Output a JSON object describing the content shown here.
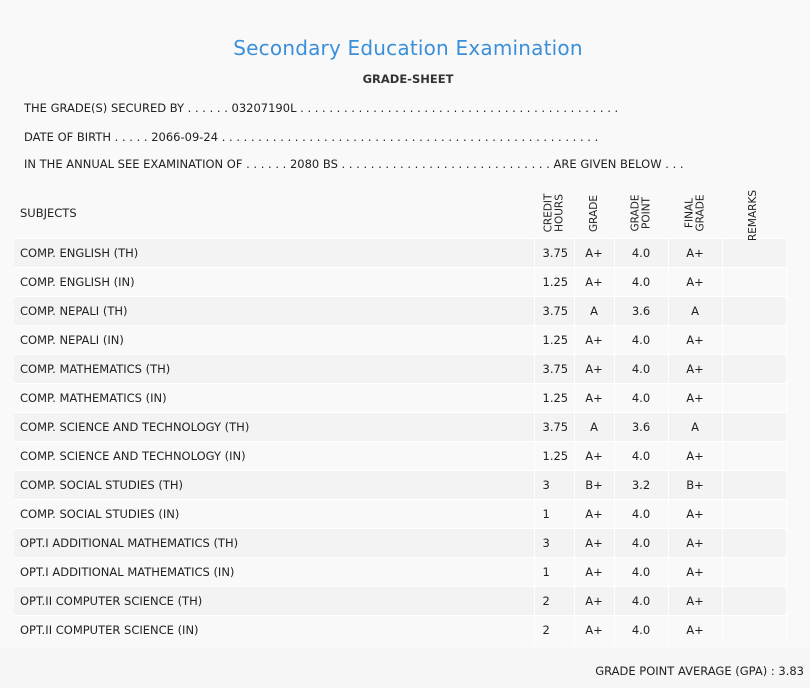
{
  "header": {
    "title": "Secondary Education Examination",
    "subtitle": "GRADE-SHEET"
  },
  "info": {
    "secured_by": "THE GRADE(S) SECURED BY . . . . . . 03207190L . . . . . . . . . . . . . . . . . . . . . . . . . . . . . . . . . . . . . . . . . . . .",
    "dob": "DATE OF BIRTH . . . . . 2066-09-24 . . . . . . . . . . . . . . . . . . . . . . . . . . . . . . . . . . . . . . . . . . . . . . . . . . . .",
    "exam": "IN THE ANNUAL SEE EXAMINATION OF . . . . . . 2080 BS . . . . . . . . . . . . . . . . . . . . . . . . . . . . . ARE GIVEN BELOW . . ."
  },
  "columns": {
    "subjects": "SUBJECTS",
    "credit_hours": [
      "CREDIT",
      "HOURS"
    ],
    "grade": "GRADE",
    "grade_point": [
      "GRADE",
      "POINT"
    ],
    "final_grade": [
      "FINAL",
      "GRADE"
    ],
    "remarks": "REMARKS"
  },
  "rows": [
    {
      "subject": "COMP. ENGLISH (TH)",
      "credit": "3.75",
      "grade": "A+",
      "point": "4.0",
      "final": "A+",
      "remarks": ""
    },
    {
      "subject": "COMP. ENGLISH (IN)",
      "credit": "1.25",
      "grade": "A+",
      "point": "4.0",
      "final": "A+",
      "remarks": ""
    },
    {
      "subject": "COMP. NEPALI (TH)",
      "credit": "3.75",
      "grade": "A",
      "point": "3.6",
      "final": "A",
      "remarks": ""
    },
    {
      "subject": "COMP. NEPALI (IN)",
      "credit": "1.25",
      "grade": "A+",
      "point": "4.0",
      "final": "A+",
      "remarks": ""
    },
    {
      "subject": "COMP. MATHEMATICS (TH)",
      "credit": "3.75",
      "grade": "A+",
      "point": "4.0",
      "final": "A+",
      "remarks": ""
    },
    {
      "subject": "COMP. MATHEMATICS (IN)",
      "credit": "1.25",
      "grade": "A+",
      "point": "4.0",
      "final": "A+",
      "remarks": ""
    },
    {
      "subject": "COMP. SCIENCE AND TECHNOLOGY (TH)",
      "credit": "3.75",
      "grade": "A",
      "point": "3.6",
      "final": "A",
      "remarks": ""
    },
    {
      "subject": "COMP. SCIENCE AND TECHNOLOGY (IN)",
      "credit": "1.25",
      "grade": "A+",
      "point": "4.0",
      "final": "A+",
      "remarks": ""
    },
    {
      "subject": "COMP. SOCIAL STUDIES (TH)",
      "credit": "3",
      "grade": "B+",
      "point": "3.2",
      "final": "B+",
      "remarks": ""
    },
    {
      "subject": "COMP. SOCIAL STUDIES (IN)",
      "credit": "1",
      "grade": "A+",
      "point": "4.0",
      "final": "A+",
      "remarks": ""
    },
    {
      "subject": "OPT.I ADDITIONAL MATHEMATICS (TH)",
      "credit": "3",
      "grade": "A+",
      "point": "4.0",
      "final": "A+",
      "remarks": ""
    },
    {
      "subject": "OPT.I ADDITIONAL MATHEMATICS (IN)",
      "credit": "1",
      "grade": "A+",
      "point": "4.0",
      "final": "A+",
      "remarks": ""
    },
    {
      "subject": "OPT.II COMPUTER SCIENCE (TH)",
      "credit": "2",
      "grade": "A+",
      "point": "4.0",
      "final": "A+",
      "remarks": ""
    },
    {
      "subject": "OPT.II COMPUTER SCIENCE (IN)",
      "credit": "2",
      "grade": "A+",
      "point": "4.0",
      "final": "A+",
      "remarks": ""
    }
  ],
  "footer": {
    "gpa": "GRADE POINT AVERAGE (GPA) : 3.83"
  },
  "colors": {
    "title": "#3a8fd9",
    "background": "#f9f9f9",
    "row_alt": "#f3f3f3"
  }
}
